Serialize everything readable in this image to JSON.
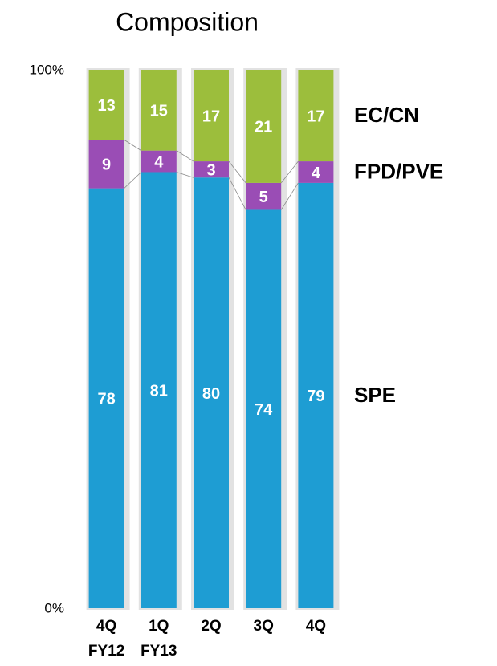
{
  "chart_data": {
    "type": "stacked_bar",
    "title": "Composition",
    "categories": [
      "4Q\nFY12",
      "1Q\nFY13",
      "2Q",
      "3Q",
      "4Q"
    ],
    "series": [
      {
        "name": "SPE",
        "color": "#1e9dd3",
        "values": [
          78,
          81,
          80,
          74,
          79
        ]
      },
      {
        "name": "FPD/PVE",
        "color": "#9a4db5",
        "values": [
          9,
          4,
          3,
          5,
          4
        ]
      },
      {
        "name": "EC/CN",
        "color": "#9cbe3c",
        "values": [
          13,
          15,
          17,
          21,
          17
        ]
      }
    ],
    "ylim": [
      0,
      100
    ],
    "yticks": [
      {
        "value": 0,
        "label": "0%"
      },
      {
        "value": 100,
        "label": "100%"
      }
    ]
  }
}
